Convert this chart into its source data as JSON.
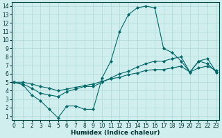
{
  "title": "",
  "xlabel": "Humidex (Indice chaleur)",
  "ylabel": "",
  "bg_color": "#d0eeee",
  "grid_color": "#b0d8d8",
  "line_color": "#006868",
  "xlim": [
    -0.3,
    23.3
  ],
  "ylim": [
    0.5,
    14.5
  ],
  "xticks": [
    0,
    1,
    2,
    3,
    4,
    5,
    6,
    7,
    8,
    9,
    10,
    11,
    12,
    13,
    14,
    15,
    16,
    17,
    18,
    19,
    20,
    21,
    22,
    23
  ],
  "yticks": [
    1,
    2,
    3,
    4,
    5,
    6,
    7,
    8,
    9,
    10,
    11,
    12,
    13,
    14
  ],
  "line1_x": [
    0,
    1,
    2,
    3,
    4,
    5,
    6,
    7,
    8,
    9,
    10,
    11,
    12,
    13,
    14,
    15,
    16,
    17,
    18,
    19,
    20,
    21,
    22,
    23
  ],
  "line1_y": [
    5.0,
    4.7,
    3.5,
    2.8,
    1.8,
    0.8,
    2.2,
    2.2,
    1.8,
    1.8,
    5.5,
    7.5,
    11.0,
    13.0,
    13.8,
    14.0,
    13.8,
    9.0,
    8.5,
    7.5,
    6.2,
    7.5,
    7.2,
    6.2
  ],
  "line2_x": [
    0,
    1,
    2,
    3,
    4,
    5,
    6,
    7,
    8,
    9,
    10,
    11,
    12,
    13,
    14,
    15,
    16,
    17,
    18,
    19,
    20,
    21,
    22,
    23
  ],
  "line2_y": [
    5.0,
    4.8,
    4.3,
    3.7,
    3.5,
    3.3,
    3.9,
    4.2,
    4.5,
    4.5,
    5.0,
    5.5,
    6.0,
    6.3,
    6.8,
    7.2,
    7.5,
    7.5,
    7.8,
    8.0,
    6.2,
    7.5,
    7.8,
    6.2
  ],
  "line3_x": [
    0,
    1,
    2,
    3,
    4,
    5,
    6,
    7,
    8,
    9,
    10,
    11,
    12,
    13,
    14,
    15,
    16,
    17,
    18,
    19,
    20,
    21,
    22,
    23
  ],
  "line3_y": [
    5.0,
    5.0,
    4.8,
    4.5,
    4.3,
    4.0,
    4.2,
    4.4,
    4.6,
    4.8,
    5.1,
    5.4,
    5.6,
    5.9,
    6.1,
    6.4,
    6.5,
    6.5,
    6.7,
    6.9,
    6.2,
    6.7,
    6.9,
    6.4
  ],
  "marker": "D",
  "markersize": 2.0,
  "linewidth": 0.8,
  "tick_fontsize": 5.5,
  "xlabel_fontsize": 6.5
}
